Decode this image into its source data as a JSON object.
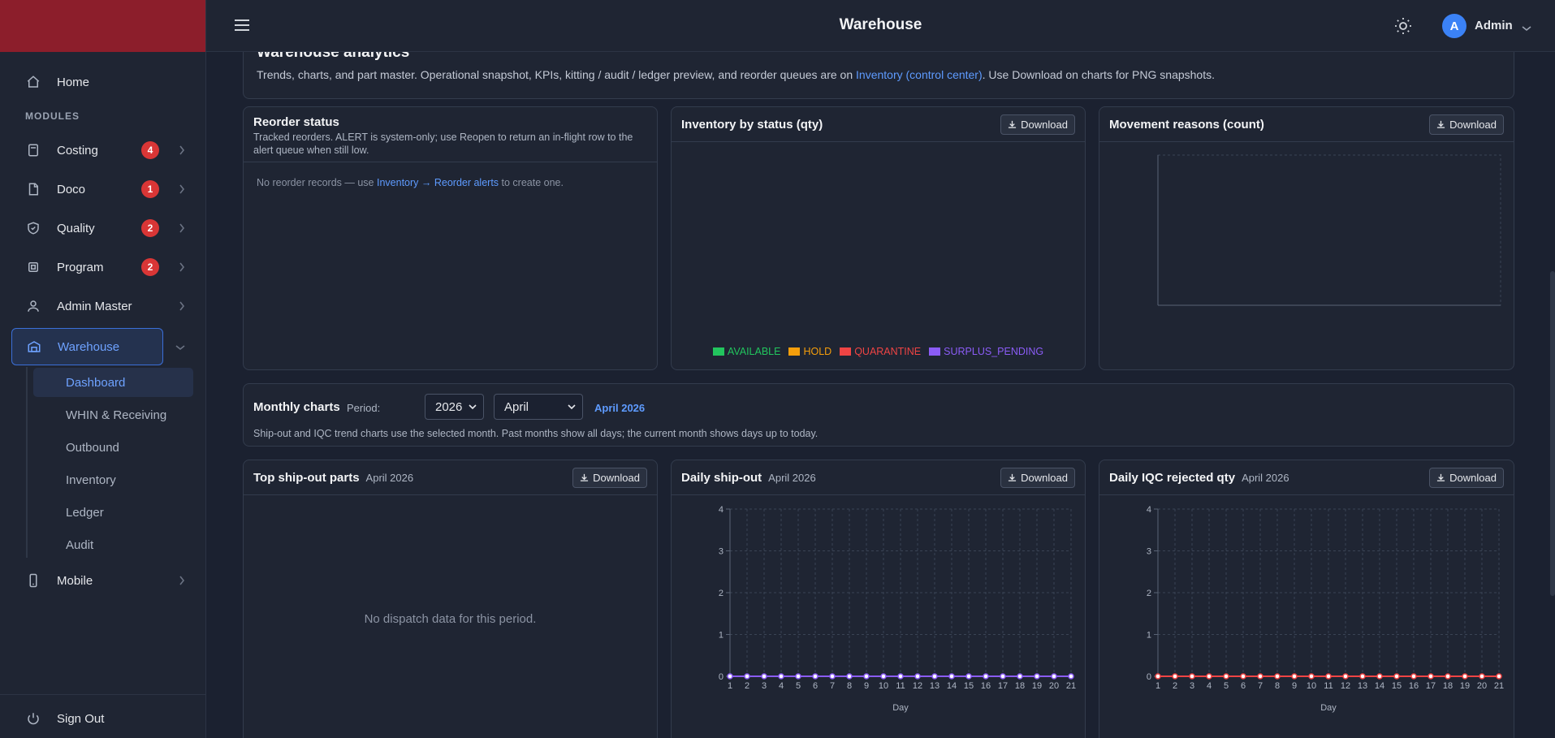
{
  "header": {
    "title": "Warehouse",
    "user_initial": "A",
    "user_name": "Admin"
  },
  "sidebar": {
    "home": "Home",
    "section_label": "MODULES",
    "items": [
      {
        "label": "Costing",
        "badge": "4"
      },
      {
        "label": "Doco",
        "badge": "1"
      },
      {
        "label": "Quality",
        "badge": "2"
      },
      {
        "label": "Program",
        "badge": "2"
      },
      {
        "label": "Admin Master",
        "badge": ""
      },
      {
        "label": "Warehouse",
        "badge": ""
      }
    ],
    "warehouse_sub": [
      "Dashboard",
      "WHIN & Receiving",
      "Outbound",
      "Inventory",
      "Ledger",
      "Audit"
    ],
    "mobile": "Mobile",
    "sign_out": "Sign Out"
  },
  "intro": {
    "title": "Warehouse analytics",
    "text_before": "Trends, charts, and part master. Operational snapshot, KPIs, kitting / audit / ledger preview, and reorder queues are on ",
    "link": "Inventory (control center)",
    "text_after": ". Use Download on charts for PNG snapshots."
  },
  "reorder": {
    "title": "Reorder status",
    "desc": "Tracked reorders. ALERT is system-only; use Reopen to return an in-flight row to the alert queue when still low.",
    "empty_before": "No reorder records — use ",
    "empty_link": "Inventory → Reorder alerts",
    "empty_after": " to create one."
  },
  "inventory_status": {
    "title": "Inventory by status (qty)",
    "download": "Download",
    "legend": [
      {
        "label": "AVAILABLE",
        "color": "#22c55e"
      },
      {
        "label": "HOLD",
        "color": "#f59e0b"
      },
      {
        "label": "QUARANTINE",
        "color": "#ef4444"
      },
      {
        "label": "SURPLUS_PENDING",
        "color": "#8b5cf6"
      }
    ]
  },
  "movement": {
    "title": "Movement reasons (count)",
    "download": "Download"
  },
  "monthly": {
    "title": "Monthly charts",
    "period_label": "Period:",
    "year": "2026",
    "month": "April",
    "period_display": "April 2026",
    "desc": "Ship-out and IQC trend charts use the selected month. Past months show all days; the current month shows days up to today."
  },
  "top_ship": {
    "title": "Top ship-out parts",
    "period": "April 2026",
    "download": "Download",
    "empty": "No dispatch data for this period."
  },
  "daily_ship": {
    "title": "Daily ship-out",
    "period": "April 2026",
    "download": "Download",
    "xlabel": "Day"
  },
  "iqc": {
    "title": "Daily IQC rejected qty",
    "period": "April 2026",
    "download": "Download",
    "xlabel": "Day"
  },
  "chart_data": [
    {
      "type": "line",
      "title": "Daily ship-out",
      "xlabel": "Day",
      "ylabel": "",
      "x": [
        1,
        2,
        3,
        4,
        5,
        6,
        7,
        8,
        9,
        10,
        11,
        12,
        13,
        14,
        15,
        16,
        17,
        18,
        19,
        20,
        21
      ],
      "series": [
        {
          "values": [
            0,
            0,
            0,
            0,
            0,
            0,
            0,
            0,
            0,
            0,
            0,
            0,
            0,
            0,
            0,
            0,
            0,
            0,
            0,
            0,
            0
          ],
          "color": "#8b5cf6"
        }
      ],
      "yticks": [
        0,
        1,
        2,
        3,
        4
      ],
      "ylim": [
        0,
        4
      ],
      "grid": true
    },
    {
      "type": "line",
      "title": "Daily IQC rejected qty",
      "xlabel": "Day",
      "ylabel": "",
      "x": [
        1,
        2,
        3,
        4,
        5,
        6,
        7,
        8,
        9,
        10,
        11,
        12,
        13,
        14,
        15,
        16,
        17,
        18,
        19,
        20,
        21
      ],
      "series": [
        {
          "values": [
            0,
            0,
            0,
            0,
            0,
            0,
            0,
            0,
            0,
            0,
            0,
            0,
            0,
            0,
            0,
            0,
            0,
            0,
            0,
            0,
            0
          ],
          "color": "#ef4444"
        }
      ],
      "yticks": [
        0,
        1,
        2,
        3,
        4
      ],
      "ylim": [
        0,
        4
      ],
      "grid": true
    }
  ]
}
